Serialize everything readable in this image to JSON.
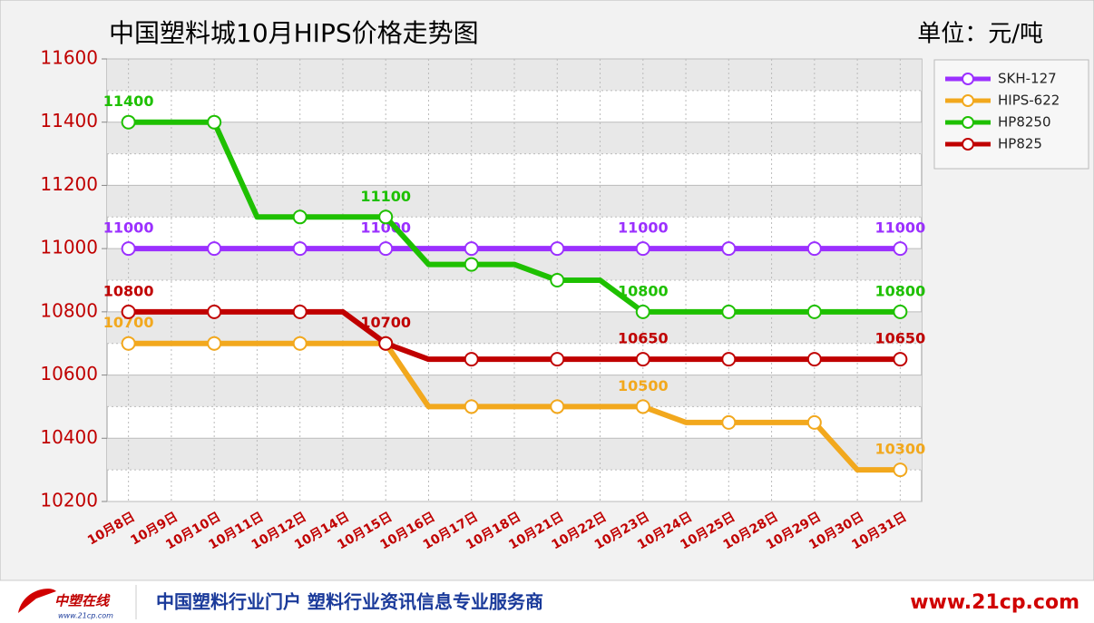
{
  "chart_data": {
    "type": "line",
    "title": "中国塑料城10月HIPS价格走势图",
    "unit": "单位：元/吨",
    "categories": [
      "10月8日",
      "10月9日",
      "10月10日",
      "10月11日",
      "10月12日",
      "10月14日",
      "10月15日",
      "10月16日",
      "10月17日",
      "10月18日",
      "10月21日",
      "10月22日",
      "10月23日",
      "10月24日",
      "10月25日",
      "10月28日",
      "10月29日",
      "10月30日",
      "10月31日"
    ],
    "series": [
      {
        "name": "SKH-127",
        "color": "#9b30ff",
        "values": [
          11000,
          11000,
          11000,
          11000,
          11000,
          11000,
          11000,
          11000,
          11000,
          11000,
          11000,
          11000,
          11000,
          11000,
          11000,
          11000,
          11000,
          11000,
          11000
        ],
        "value_labels": [
          "11000",
          null,
          null,
          null,
          null,
          null,
          "11000",
          null,
          null,
          null,
          null,
          null,
          "11000",
          null,
          null,
          null,
          null,
          null,
          "11000"
        ]
      },
      {
        "name": "HIPS-622",
        "color": "#f2a81d",
        "values": [
          10700,
          10700,
          10700,
          10700,
          10700,
          10700,
          10700,
          10500,
          10500,
          10500,
          10500,
          10500,
          10500,
          10450,
          10450,
          10450,
          10450,
          10300,
          10300
        ],
        "value_labels": [
          "10700",
          null,
          null,
          null,
          null,
          null,
          null,
          null,
          null,
          null,
          null,
          null,
          "10500",
          null,
          null,
          null,
          null,
          null,
          "10300"
        ]
      },
      {
        "name": "HP8250",
        "color": "#1ec000",
        "values": [
          11400,
          11400,
          11400,
          11100,
          11100,
          11100,
          11100,
          10950,
          10950,
          10950,
          10900,
          10900,
          10800,
          10800,
          10800,
          10800,
          10800,
          10800,
          10800
        ],
        "value_labels": [
          "11400",
          null,
          null,
          null,
          null,
          null,
          "11100",
          null,
          null,
          null,
          null,
          null,
          "10800",
          null,
          null,
          null,
          null,
          null,
          "10800"
        ]
      },
      {
        "name": "HP825",
        "color": "#c00000",
        "values": [
          10800,
          10800,
          10800,
          10800,
          10800,
          10800,
          10700,
          10650,
          10650,
          10650,
          10650,
          10650,
          10650,
          10650,
          10650,
          10650,
          10650,
          10650,
          10650
        ],
        "value_labels": [
          "10800",
          null,
          null,
          null,
          null,
          null,
          "10700",
          null,
          null,
          null,
          null,
          null,
          "10650",
          null,
          null,
          null,
          null,
          null,
          "10650"
        ]
      }
    ],
    "ylim": [
      10200,
      11600
    ],
    "yticks": [
      10200,
      10400,
      10600,
      10800,
      11000,
      11200,
      11400,
      11600
    ],
    "grid": true
  },
  "footer": {
    "logo": "中塑在线",
    "logo_url": "www.21cp.com",
    "slogan": "中国塑料行业门户 塑料行业资讯信息专业服务商",
    "url": "www.21cp.com"
  }
}
